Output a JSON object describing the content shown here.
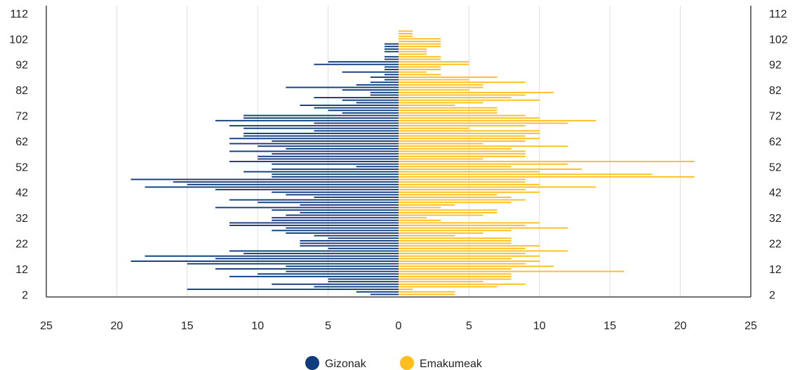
{
  "chart_data": {
    "type": "bar",
    "orientation": "horizontal",
    "subtype": "population-pyramid",
    "x_ticks": [
      "25",
      "20",
      "15",
      "10",
      "5",
      "0",
      "5",
      "10",
      "15",
      "20",
      "25"
    ],
    "xlim": [
      -25,
      25
    ],
    "y_ticks": [
      "2",
      "12",
      "22",
      "32",
      "42",
      "52",
      "62",
      "72",
      "82",
      "92",
      "102",
      "112"
    ],
    "ylim": [
      1,
      115
    ],
    "grid": "vertical",
    "legend_position": "bottom",
    "ages": [
      2,
      3,
      4,
      5,
      6,
      7,
      8,
      9,
      10,
      11,
      12,
      13,
      14,
      15,
      16,
      17,
      18,
      19,
      20,
      21,
      22,
      23,
      24,
      25,
      26,
      27,
      28,
      29,
      30,
      31,
      32,
      33,
      34,
      35,
      36,
      37,
      38,
      39,
      40,
      41,
      42,
      43,
      44,
      45,
      46,
      47,
      48,
      49,
      50,
      51,
      52,
      53,
      54,
      55,
      56,
      57,
      58,
      59,
      60,
      61,
      62,
      63,
      64,
      65,
      66,
      67,
      68,
      69,
      70,
      71,
      72,
      73,
      74,
      75,
      76,
      77,
      78,
      79,
      80,
      81,
      82,
      83,
      84,
      85,
      86,
      87,
      88,
      89,
      90,
      91,
      92,
      93,
      94,
      95,
      96,
      97,
      98,
      99,
      100,
      101,
      102,
      103,
      104,
      105
    ],
    "series": [
      {
        "name": "Gizonak",
        "color": "#0f3c7d",
        "values": [
          2,
          3,
          15,
          6,
          9,
          5,
          5,
          12,
          10,
          8,
          13,
          8,
          15,
          19,
          13,
          18,
          11,
          12,
          5,
          7,
          7,
          7,
          5,
          6,
          8,
          9,
          8,
          12,
          12,
          9,
          9,
          8,
          7,
          9,
          13,
          7,
          10,
          12,
          6,
          8,
          9,
          13,
          18,
          15,
          16,
          19,
          9,
          9,
          11,
          9,
          3,
          9,
          12,
          10,
          10,
          9,
          12,
          8,
          10,
          12,
          9,
          12,
          11,
          11,
          6,
          11,
          12,
          6,
          13,
          11,
          11,
          4,
          5,
          6,
          7,
          3,
          4,
          6,
          2,
          2,
          4,
          8,
          3,
          2,
          1,
          2,
          1,
          4,
          1,
          1,
          6,
          5,
          1,
          1,
          0,
          1,
          1,
          1,
          1,
          0,
          0,
          0,
          0,
          0
        ],
        "color_name": "navy"
      },
      {
        "name": "Emakumeak",
        "color": "#fdbe1e",
        "values": [
          4,
          4,
          1,
          7,
          9,
          6,
          8,
          8,
          8,
          16,
          8,
          11,
          9,
          10,
          8,
          10,
          9,
          12,
          9,
          10,
          8,
          8,
          8,
          4,
          6,
          8,
          12,
          9,
          10,
          3,
          2,
          6,
          7,
          7,
          3,
          4,
          8,
          9,
          8,
          7,
          10,
          9,
          14,
          10,
          9,
          9,
          21,
          18,
          10,
          13,
          8,
          12,
          21,
          6,
          9,
          9,
          9,
          8,
          12,
          6,
          9,
          10,
          9,
          10,
          10,
          5,
          9,
          12,
          14,
          10,
          9,
          7,
          7,
          7,
          4,
          6,
          10,
          8,
          9,
          11,
          5,
          6,
          6,
          9,
          5,
          7,
          3,
          2,
          3,
          3,
          5,
          5,
          3,
          3,
          2,
          2,
          2,
          3,
          3,
          3,
          3,
          1,
          1,
          1
        ],
        "color_name": "amber"
      }
    ]
  }
}
